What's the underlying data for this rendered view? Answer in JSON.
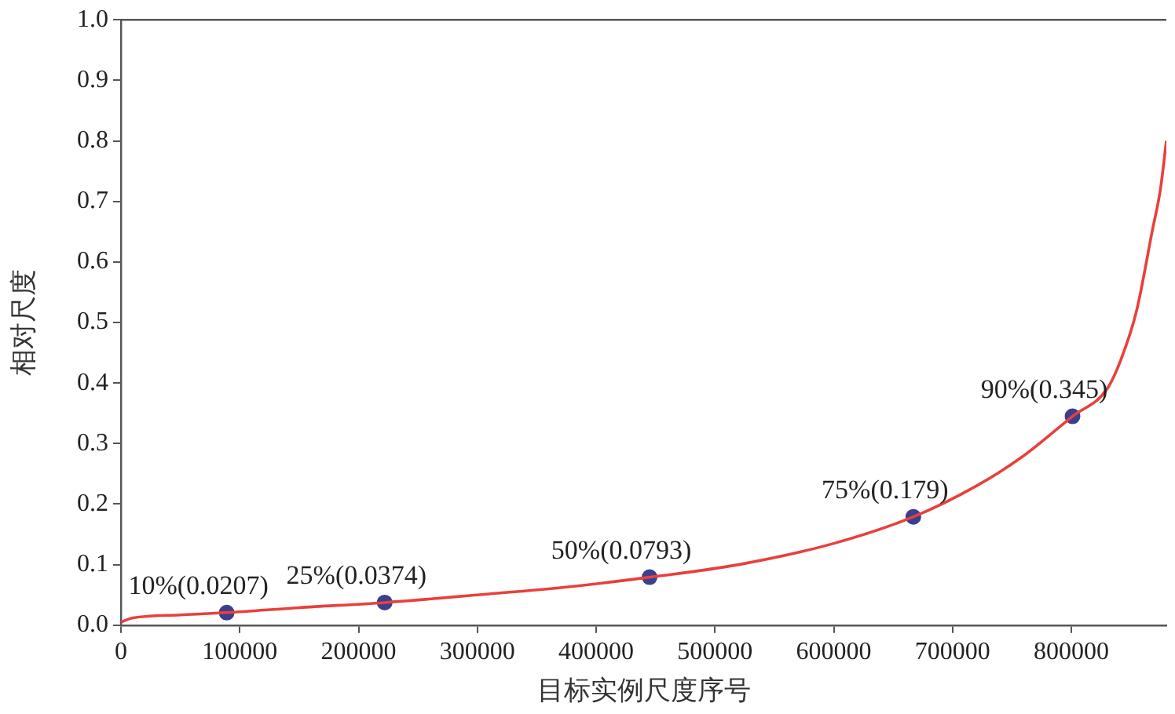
{
  "chart_data": {
    "type": "line",
    "xlabel": "目标实例尺度序号",
    "ylabel": "相对尺度",
    "xlim": [
      0,
      880000
    ],
    "xticks": [
      0,
      100000,
      200000,
      300000,
      400000,
      500000,
      600000,
      700000,
      800000
    ],
    "ylim": [
      0,
      1.0
    ],
    "yticks": [
      {
        "value": 0,
        "label": "0.0"
      },
      0.1,
      0.2,
      0.3,
      0.4,
      0.5,
      0.6,
      0.7,
      0.8,
      0.9,
      {
        "value": 1,
        "label": "1.0"
      }
    ],
    "grid": false,
    "legend": false,
    "series": [
      {
        "color": "#e8403c",
        "marker": "none",
        "x": [
          0,
          10000,
          50000,
          89000,
          150000,
          222000,
          300000,
          380000,
          445000,
          520000,
          600000,
          667000,
          720000,
          760000,
          801000,
          830000,
          842000,
          855000,
          868000,
          875000,
          880000
        ],
        "values": [
          0.005,
          0.012,
          0.017,
          0.0207,
          0.029,
          0.0374,
          0.05,
          0.064,
          0.0793,
          0.1,
          0.135,
          0.179,
          0.23,
          0.28,
          0.345,
          0.39,
          0.44,
          0.52,
          0.65,
          0.72,
          0.8
        ]
      },
      {
        "type": "scatter",
        "color": "#3b3f8f",
        "marker": "circle",
        "x": [
          89000,
          222000,
          445000,
          667000,
          801000
        ],
        "values": [
          0.0207,
          0.0374,
          0.0793,
          0.179,
          0.345
        ]
      }
    ],
    "annotations": [
      {
        "text": "10%(0.0207)",
        "x": 89000,
        "y": 0.0207
      },
      {
        "text": "25%(0.0374)",
        "x": 222000,
        "y": 0.0374
      },
      {
        "text": "50%(0.0793)",
        "x": 445000,
        "y": 0.0793
      },
      {
        "text": "75%(0.179)",
        "x": 667000,
        "y": 0.179
      },
      {
        "text": "90%(0.345)",
        "x": 801000,
        "y": 0.345
      }
    ]
  }
}
